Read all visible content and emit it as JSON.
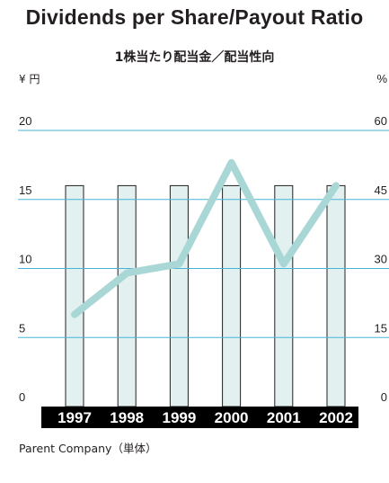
{
  "title": "Dividends per Share/Payout Ratio",
  "subtitle": "1株当たり配当金／配当性向",
  "footnote": "Parent Company（単体）",
  "chart_data": {
    "type": "bar+line",
    "categories": [
      "1997",
      "1998",
      "1999",
      "2000",
      "2001",
      "2002"
    ],
    "series": [
      {
        "axis": "left",
        "type": "bar",
        "values": [
          16,
          16,
          16,
          16,
          16,
          16
        ]
      },
      {
        "axis": "right",
        "type": "line",
        "values": [
          20,
          29,
          31,
          53,
          31,
          48
        ]
      }
    ],
    "left_axis": {
      "unit_label": "¥ 円",
      "ticks": [
        0,
        5,
        10,
        15,
        20
      ],
      "range": [
        0,
        20
      ]
    },
    "right_axis": {
      "unit_label": "%",
      "ticks": [
        0,
        15,
        30,
        45,
        60
      ],
      "range": [
        0,
        60
      ]
    },
    "grid": true,
    "colors": {
      "bar_fill": "#e2f1f0",
      "bar_stroke": "#231f20",
      "line": "#a9d7d6",
      "grid": "#47b6d6",
      "axis_band": "#000000",
      "axis_text": "#ffffff"
    }
  }
}
